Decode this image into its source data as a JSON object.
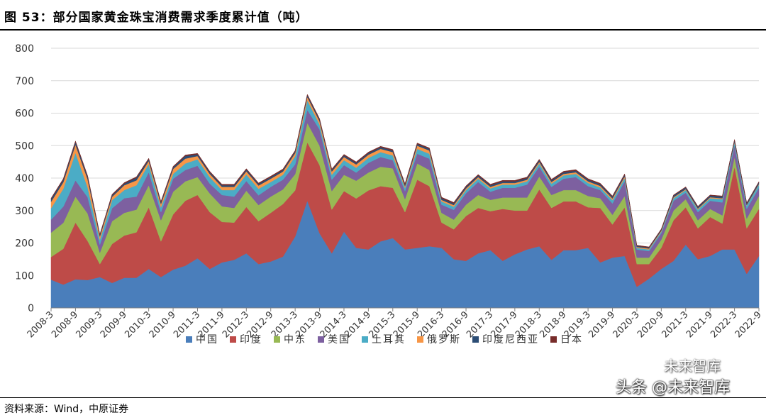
{
  "header": {
    "title": "图 53：部分国家黄金珠宝消费需求季度累计值（吨）"
  },
  "footer": {
    "source": "资料来源：Wind，中原证券"
  },
  "watermark": {
    "main": "头条 @未来智库",
    "sub": "未来智库"
  },
  "chart_data": {
    "type": "area",
    "stacked": true,
    "title": "",
    "xlabel": "",
    "ylabel": "",
    "ylim": [
      0,
      800
    ],
    "yticks": [
      0,
      100,
      200,
      300,
      400,
      500,
      600,
      700,
      800
    ],
    "grid": "horizontal",
    "legend_position": "bottom",
    "x_tick_labels": [
      "2008-3",
      "2008-9",
      "2009-3",
      "2009-9",
      "2010-3",
      "2010-9",
      "2011-3",
      "2011-9",
      "2012-3",
      "2012-9",
      "2013-3",
      "2013-9",
      "2014-3",
      "2014-9",
      "2015-3",
      "2015-9",
      "2016-3",
      "2016-9",
      "2017-3",
      "2017-9",
      "2018-3",
      "2018-9",
      "2019-3",
      "2019-9",
      "2020-3",
      "2020-9",
      "2021-3",
      "2021-9",
      "2022-3",
      "2022-9"
    ],
    "x": [
      "2008-3",
      "2008-6",
      "2008-9",
      "2008-12",
      "2009-3",
      "2009-6",
      "2009-9",
      "2009-12",
      "2010-3",
      "2010-6",
      "2010-9",
      "2010-12",
      "2011-3",
      "2011-6",
      "2011-9",
      "2011-12",
      "2012-3",
      "2012-6",
      "2012-9",
      "2012-12",
      "2013-3",
      "2013-6",
      "2013-9",
      "2013-12",
      "2014-3",
      "2014-6",
      "2014-9",
      "2014-12",
      "2015-3",
      "2015-6",
      "2015-9",
      "2015-12",
      "2016-3",
      "2016-6",
      "2016-9",
      "2016-12",
      "2017-3",
      "2017-6",
      "2017-9",
      "2017-12",
      "2018-3",
      "2018-6",
      "2018-9",
      "2018-12",
      "2019-3",
      "2019-6",
      "2019-9",
      "2019-12",
      "2020-3",
      "2020-6",
      "2020-9",
      "2020-12",
      "2021-3",
      "2021-6",
      "2021-9",
      "2021-12",
      "2022-3",
      "2022-6",
      "2022-9"
    ],
    "series": [
      {
        "name": "中国",
        "color": "#4a7ebb",
        "values": [
          87,
          72,
          88,
          86,
          95,
          77,
          93,
          93,
          120,
          95,
          118,
          130,
          153,
          120,
          140,
          148,
          168,
          135,
          143,
          158,
          220,
          330,
          230,
          168,
          235,
          185,
          180,
          205,
          215,
          180,
          185,
          190,
          185,
          150,
          145,
          168,
          178,
          145,
          165,
          180,
          190,
          148,
          178,
          178,
          185,
          140,
          155,
          160,
          65,
          90,
          120,
          145,
          195,
          150,
          160,
          180,
          180,
          105,
          160
        ]
      },
      {
        "name": "印度",
        "color": "#be4b48",
        "values": [
          70,
          110,
          175,
          120,
          40,
          120,
          130,
          140,
          190,
          110,
          170,
          200,
          195,
          175,
          125,
          115,
          143,
          132,
          150,
          162,
          142,
          180,
          210,
          135,
          125,
          152,
          182,
          170,
          155,
          115,
          210,
          185,
          78,
          92,
          138,
          140,
          120,
          160,
          135,
          120,
          175,
          160,
          150,
          150,
          125,
          168,
          102,
          150,
          70,
          45,
          65,
          125,
          115,
          95,
          120,
          80,
          255,
          140,
          145
        ]
      },
      {
        "name": "中东",
        "color": "#98b954",
        "values": [
          75,
          80,
          80,
          85,
          35,
          70,
          70,
          70,
          68,
          65,
          70,
          60,
          55,
          58,
          48,
          45,
          50,
          50,
          50,
          45,
          50,
          60,
          60,
          57,
          50,
          55,
          55,
          60,
          60,
          40,
          50,
          50,
          30,
          30,
          35,
          40,
          35,
          35,
          40,
          40,
          40,
          40,
          35,
          35,
          35,
          30,
          30,
          35,
          20,
          20,
          25,
          30,
          25,
          25,
          25,
          25,
          30,
          30,
          40
        ]
      },
      {
        "name": "美国",
        "color": "#7d60a0",
        "values": [
          40,
          50,
          50,
          50,
          25,
          40,
          45,
          40,
          40,
          25,
          40,
          35,
          35,
          30,
          35,
          35,
          30,
          30,
          30,
          30,
          30,
          40,
          50,
          35,
          30,
          25,
          30,
          30,
          25,
          25,
          30,
          35,
          25,
          30,
          35,
          40,
          25,
          30,
          30,
          40,
          30,
          25,
          35,
          40,
          30,
          25,
          35,
          45,
          25,
          20,
          20,
          30,
          20,
          25,
          25,
          40,
          35,
          30,
          25
        ]
      },
      {
        "name": "土耳其",
        "color": "#4bacc6",
        "values": [
          35,
          55,
          85,
          30,
          15,
          25,
          25,
          35,
          25,
          15,
          15,
          20,
          20,
          20,
          15,
          20,
          20,
          20,
          15,
          15,
          25,
          30,
          15,
          15,
          15,
          15,
          15,
          15,
          15,
          10,
          15,
          15,
          10,
          10,
          10,
          10,
          10,
          10,
          10,
          10,
          10,
          10,
          10,
          10,
          10,
          8,
          10,
          10,
          5,
          5,
          5,
          8,
          8,
          8,
          8,
          10,
          10,
          10,
          10
        ]
      },
      {
        "name": "俄罗斯",
        "color": "#f79646",
        "values": [
          20,
          20,
          25,
          25,
          10,
          10,
          15,
          15,
          10,
          10,
          15,
          15,
          10,
          10,
          10,
          10,
          10,
          10,
          10,
          10,
          10,
          10,
          10,
          10,
          10,
          10,
          10,
          10,
          10,
          5,
          10,
          10,
          5,
          5,
          5,
          5,
          5,
          5,
          5,
          5,
          5,
          5,
          5,
          5,
          5,
          5,
          5,
          5,
          3,
          3,
          3,
          3,
          3,
          3,
          3,
          3,
          2,
          2,
          2
        ]
      },
      {
        "name": "印度尼西亚",
        "color": "#2c4d75",
        "values": [
          8,
          8,
          8,
          8,
          5,
          5,
          5,
          8,
          5,
          5,
          5,
          8,
          5,
          5,
          5,
          5,
          5,
          5,
          5,
          5,
          5,
          5,
          5,
          5,
          5,
          5,
          5,
          5,
          5,
          5,
          5,
          5,
          5,
          5,
          5,
          5,
          5,
          5,
          5,
          5,
          5,
          5,
          5,
          5,
          5,
          5,
          5,
          5,
          3,
          3,
          3,
          5,
          5,
          5,
          5,
          5,
          5,
          5,
          5
        ]
      },
      {
        "name": "日本",
        "color": "#772c2a",
        "values": [
          3,
          3,
          3,
          3,
          2,
          3,
          3,
          3,
          3,
          3,
          3,
          3,
          3,
          3,
          3,
          3,
          3,
          3,
          3,
          3,
          3,
          3,
          3,
          3,
          3,
          3,
          3,
          3,
          3,
          3,
          3,
          3,
          3,
          3,
          3,
          3,
          3,
          3,
          3,
          3,
          3,
          3,
          3,
          3,
          3,
          3,
          3,
          3,
          2,
          2,
          2,
          2,
          2,
          2,
          2,
          2,
          2,
          2,
          2
        ]
      }
    ]
  }
}
